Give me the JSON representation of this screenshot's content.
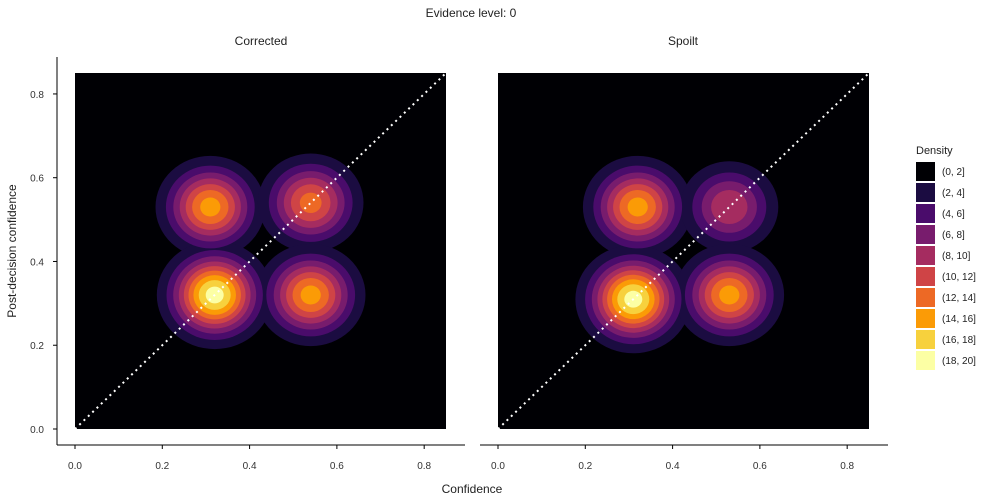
{
  "chart_data": {
    "type": "heatmap",
    "title": "Evidence level: 0",
    "xlabel": "Confidence",
    "ylabel": "Post-decision confidence",
    "xlim": [
      0,
      0.85
    ],
    "ylim": [
      0,
      0.85
    ],
    "x_ticks": [
      "0.0",
      "0.2",
      "0.4",
      "0.6",
      "0.8"
    ],
    "y_ticks": [
      "0.0",
      "0.2",
      "0.4",
      "0.6",
      "0.8"
    ],
    "grid": false,
    "reference_line": "dotted white identity line (y = x)",
    "panels": [
      {
        "label": "Corrected",
        "peaks": [
          {
            "x": 0.31,
            "y": 0.53,
            "height": 15
          },
          {
            "x": 0.54,
            "y": 0.54,
            "height": 13
          },
          {
            "x": 0.32,
            "y": 0.32,
            "height": 19
          },
          {
            "x": 0.54,
            "y": 0.32,
            "height": 15
          }
        ]
      },
      {
        "label": "Spoilt",
        "peaks": [
          {
            "x": 0.32,
            "y": 0.53,
            "height": 15
          },
          {
            "x": 0.53,
            "y": 0.53,
            "height": 10
          },
          {
            "x": 0.31,
            "y": 0.31,
            "height": 19
          },
          {
            "x": 0.53,
            "y": 0.32,
            "height": 15
          }
        ]
      }
    ],
    "legend": {
      "title": "Density",
      "position": "right",
      "bins": [
        "(0, 2]",
        "(2, 4]",
        "(4, 6]",
        "(6, 8]",
        "(8, 10]",
        "(10, 12]",
        "(12, 14]",
        "(14, 16]",
        "(16, 18]",
        "(18, 20]"
      ],
      "colors": [
        "#000004",
        "#1b0c41",
        "#4a0c6b",
        "#781c6d",
        "#a52c60",
        "#cf4446",
        "#ed6925",
        "#fb9b06",
        "#f7d13d",
        "#fcffa4"
      ]
    }
  }
}
